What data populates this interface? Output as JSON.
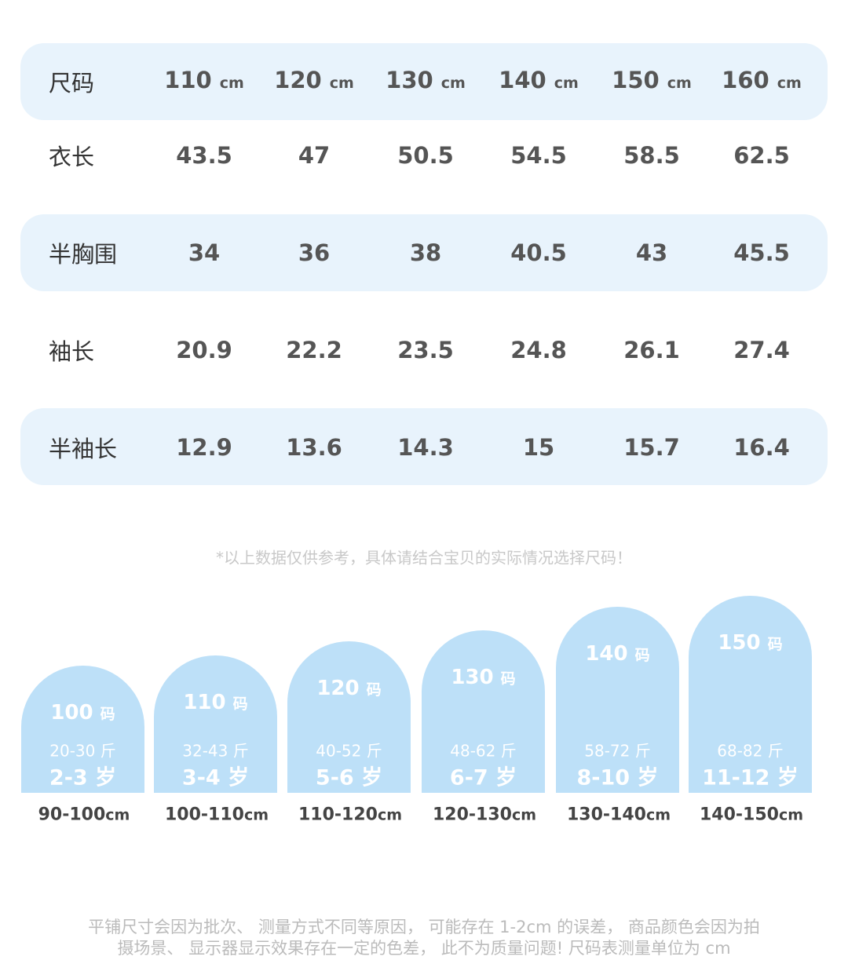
{
  "table": {
    "header": {
      "label": "尺码",
      "sizes": [
        {
          "size": "110",
          "unit": "cm"
        },
        {
          "size": "120",
          "unit": "cm"
        },
        {
          "size": "130",
          "unit": "cm"
        },
        {
          "size": "140",
          "unit": "cm"
        },
        {
          "size": "150",
          "unit": "cm"
        },
        {
          "size": "160",
          "unit": "cm"
        }
      ]
    },
    "rows": [
      {
        "label": "衣长",
        "values": [
          "43.5",
          "47",
          "50.5",
          "54.5",
          "58.5",
          "62.5"
        ]
      },
      {
        "label": "半胸围",
        "values": [
          "34",
          "36",
          "38",
          "40.5",
          "43",
          "45.5"
        ]
      },
      {
        "label": "袖长",
        "values": [
          "20.9",
          "22.2",
          "23.5",
          "24.8",
          "26.1",
          "27.4"
        ]
      },
      {
        "label": "半袖长",
        "values": [
          "12.9",
          "13.6",
          "14.3",
          "15",
          "15.7",
          "16.4"
        ]
      }
    ]
  },
  "note": "*以上数据仅供参考，具体请结合宝贝的实际情况选择尺码！",
  "cards": [
    {
      "size": "100",
      "unit": "码",
      "weight": "20-30 斤",
      "age": "2-3 岁",
      "height": "90-100",
      "height_unit": "cm"
    },
    {
      "size": "110",
      "unit": "码",
      "weight": "32-43 斤",
      "age": "3-4 岁",
      "height": "100-110",
      "height_unit": "cm"
    },
    {
      "size": "120",
      "unit": "码",
      "weight": "40-52 斤",
      "age": "5-6 岁",
      "height": "110-120",
      "height_unit": "cm"
    },
    {
      "size": "130",
      "unit": "码",
      "weight": "48-62 斤",
      "age": "6-7 岁",
      "height": "120-130",
      "height_unit": "cm"
    },
    {
      "size": "140",
      "unit": "码",
      "weight": "58-72 斤",
      "age": "8-10 岁",
      "height": "130-140",
      "height_unit": "cm"
    },
    {
      "size": "150",
      "unit": "码",
      "weight": "68-82 斤",
      "age": "11-12 岁",
      "height": "140-150",
      "height_unit": "cm"
    }
  ],
  "footer": [
    "平铺尺寸会因为批次、 测量方式不同等原因， 可能存在 1-2cm 的误差， 商品颜色会因为拍",
    "摄场景、 显示器显示效果存在一定的色差， 此不为质量问题! 尺码表测量单位为 cm"
  ]
}
